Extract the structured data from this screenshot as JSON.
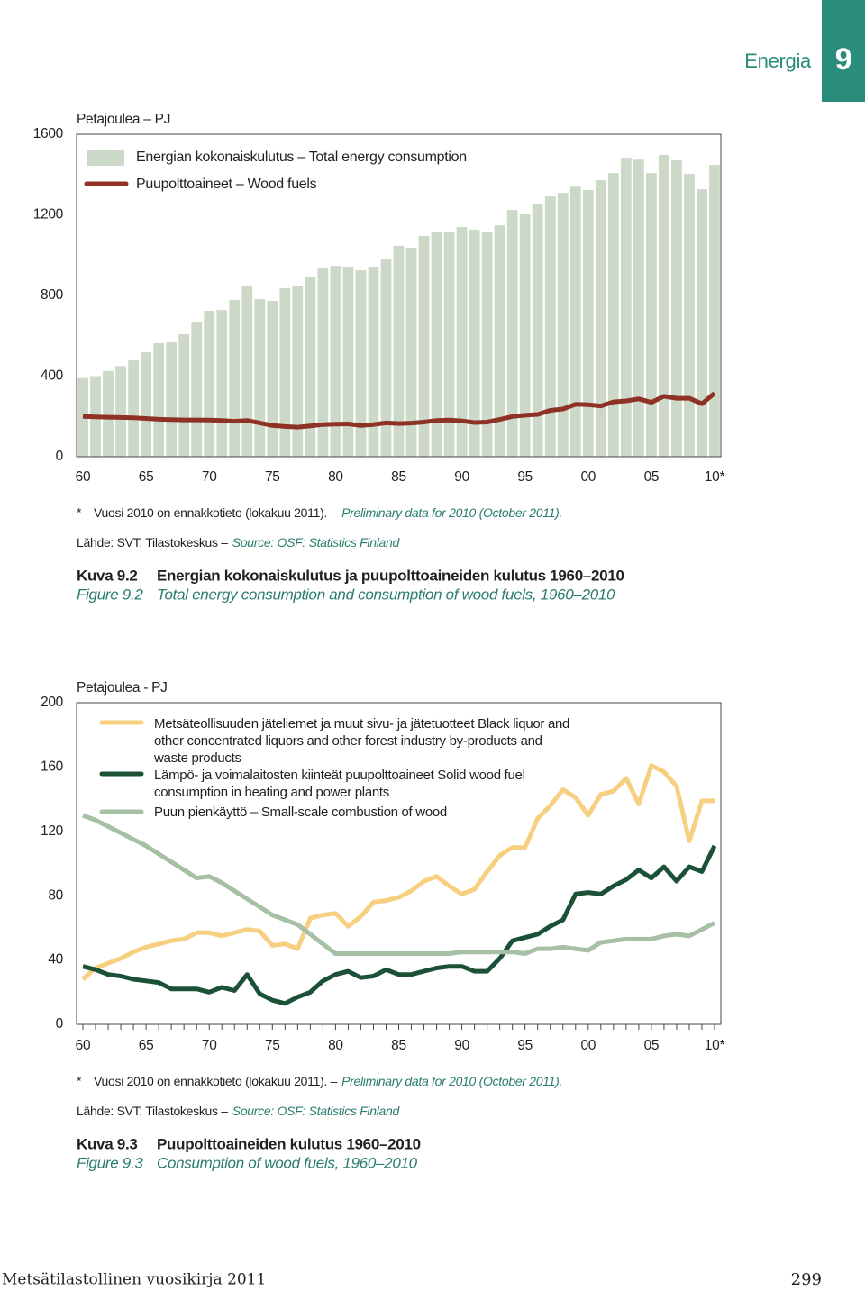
{
  "header": {
    "section": "Energia",
    "number": "9"
  },
  "chart_data": [
    {
      "type": "combo",
      "y_label": "Petajoulea – PJ",
      "categories": [
        "60",
        null,
        null,
        null,
        null,
        "65",
        null,
        null,
        null,
        null,
        "70",
        null,
        null,
        null,
        null,
        "75",
        null,
        null,
        null,
        null,
        "80",
        null,
        null,
        null,
        null,
        "85",
        null,
        null,
        null,
        null,
        "90",
        null,
        null,
        null,
        null,
        "95",
        null,
        null,
        null,
        null,
        "00",
        null,
        null,
        null,
        null,
        "05",
        null,
        null,
        null,
        null,
        "10*"
      ],
      "series": [
        {
          "name": "Energian kokonaiskulutus – Total energy consumption",
          "type": "bar",
          "color": "#cdd9c8",
          "values": [
            390,
            400,
            425,
            450,
            478,
            518,
            563,
            567,
            608,
            670,
            724,
            728,
            778,
            845,
            782,
            773,
            836,
            845,
            894,
            938,
            947,
            943,
            925,
            943,
            979,
            1046,
            1037,
            1095,
            1113,
            1117,
            1139,
            1126,
            1113,
            1148,
            1224,
            1206,
            1256,
            1291,
            1309,
            1340,
            1323,
            1372,
            1407,
            1483,
            1474,
            1407,
            1497,
            1470,
            1403,
            1327,
            1448
          ]
        },
        {
          "name": "Puupolttoaineet – Wood fuels",
          "type": "line",
          "color": "#8e3226",
          "values": [
            200,
            198,
            196,
            195,
            193,
            190,
            186,
            184,
            183,
            183,
            182,
            180,
            176,
            180,
            168,
            155,
            150,
            147,
            153,
            160,
            162,
            163,
            155,
            160,
            168,
            165,
            167,
            172,
            180,
            182,
            178,
            170,
            172,
            185,
            200,
            206,
            210,
            230,
            237,
            260,
            258,
            252,
            272,
            277,
            287,
            270,
            300,
            290,
            290,
            263,
            315
          ]
        }
      ],
      "ylim": [
        0,
        1600
      ],
      "yticks": [
        0,
        400,
        800,
        1200,
        1600
      ],
      "minor_x_ticks": false,
      "note_marker": "*",
      "note": {
        "fi": "Vuosi 2010 on ennakkotieto (lokakuu 2011). –",
        "en": "Preliminary data for 2010 (October 2011)."
      },
      "source": {
        "fi": "Lähde: SVT: Tilastokeskus –",
        "en": "Source: OSF: Statistics Finland"
      },
      "caption": {
        "label_fi": "Kuva 9.2",
        "title_fi": "Energian kokonaiskulutus ja puupolttoaineiden kulutus 1960–2010",
        "label_en": "Figure 9.2",
        "title_en": "Total energy consumption and consumption of wood fuels, 1960–2010"
      }
    },
    {
      "type": "line",
      "y_label": "Petajoulea - PJ",
      "categories": [
        "60",
        null,
        null,
        null,
        null,
        "65",
        null,
        null,
        null,
        null,
        "70",
        null,
        null,
        null,
        null,
        "75",
        null,
        null,
        null,
        null,
        "80",
        null,
        null,
        null,
        null,
        "85",
        null,
        null,
        null,
        null,
        "90",
        null,
        null,
        null,
        null,
        "95",
        null,
        null,
        null,
        null,
        "00",
        null,
        null,
        null,
        null,
        "05",
        null,
        null,
        null,
        null,
        "10*"
      ],
      "series": [
        {
          "name": "Metsäteollisuuden jäteliemet ja muut sivu- ja jätetuotteet Black liquor and other concentrated liquors and other forest industry by-products and waste products",
          "color": "#f6d080",
          "values": [
            28,
            35,
            38,
            41,
            45,
            48,
            50,
            52,
            53,
            57,
            57,
            55,
            57,
            59,
            58,
            49,
            50,
            47,
            66,
            68,
            69,
            61,
            67,
            76,
            77,
            79,
            83,
            89,
            92,
            86,
            81,
            84,
            95,
            105,
            110,
            110,
            128,
            136,
            146,
            141,
            130,
            143,
            145,
            153,
            137,
            161,
            157,
            148,
            114,
            139,
            139
          ]
        },
        {
          "name": "Lämpö- ja voimalaitosten kiinteät puupolttoaineet Solid wood fuel consumption in heating and power plants",
          "color": "#1b5136",
          "values": [
            36,
            34,
            31,
            30,
            28,
            27,
            26,
            22,
            22,
            22,
            20,
            23,
            21,
            31,
            19,
            15,
            13,
            17,
            20,
            27,
            31,
            33,
            29,
            30,
            34,
            31,
            31,
            33,
            35,
            36,
            36,
            33,
            33,
            41,
            52,
            54,
            56,
            61,
            65,
            81,
            82,
            81,
            86,
            90,
            96,
            91,
            98,
            89,
            98,
            95,
            111
          ]
        },
        {
          "name": "Puun pienkäyttö – Small-scale combustion of wood",
          "color": "#a6c0a5",
          "values": [
            130,
            127,
            123,
            119,
            115,
            111,
            106,
            101,
            96,
            91,
            92,
            88,
            83,
            78,
            73,
            68,
            65,
            62,
            56,
            50,
            44,
            44,
            44,
            44,
            44,
            44,
            44,
            44,
            44,
            44,
            45,
            45,
            45,
            45,
            45,
            44,
            47,
            47,
            48,
            47,
            46,
            51,
            52,
            53,
            53,
            53,
            55,
            56,
            55,
            59,
            63
          ]
        }
      ],
      "ylim": [
        0,
        200
      ],
      "yticks": [
        0,
        40,
        80,
        120,
        160,
        200
      ],
      "minor_x_ticks": true,
      "note_marker": "*",
      "note": {
        "fi": "Vuosi 2010 on ennakkotieto (lokakuu 2011). –",
        "en": "Preliminary data for 2010 (October 2011)."
      },
      "source": {
        "fi": "Lähde: SVT: Tilastokeskus –",
        "en": "Source: OSF: Statistics Finland"
      },
      "caption": {
        "label_fi": "Kuva 9.3",
        "title_fi": "Puupolttoaineiden kulutus 1960–2010",
        "label_en": "Figure 9.3",
        "title_en": "Consumption of wood fuels, 1960–2010"
      }
    }
  ],
  "footer": {
    "publication": "Metsätilastollinen vuosikirja 2011",
    "page": "299"
  }
}
